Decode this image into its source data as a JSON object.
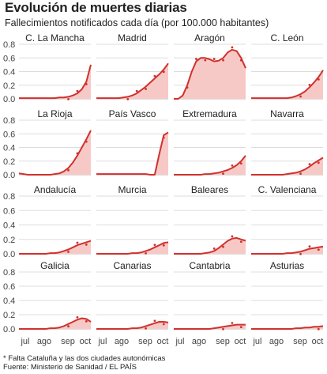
{
  "title": "Evolución de muertes diarias",
  "subtitle": "Fallecimientos notificados cada día (por 100.000 habitantes)",
  "footnote": "* Falta Cataluña y las dos ciudades autonómicas",
  "source": "Fuente: Ministerio de Sanidad / EL PAÍS",
  "colors": {
    "line": "#d0312d",
    "fill": "#f7c9c6",
    "grid": "#dddddd",
    "axis": "#444444"
  },
  "chart_data": {
    "type": "area",
    "layout": "small-multiples 4x4",
    "x_labels": [
      "jul",
      "ago",
      "sep",
      "oct"
    ],
    "ylim": [
      0,
      0.8
    ],
    "y_ticks": [
      "0.0",
      "0.2",
      "0.4",
      "0.6",
      "0.8"
    ],
    "grid": true,
    "panels": [
      {
        "name": "C. La Mancha",
        "values": [
          0.01,
          0.01,
          0.01,
          0.01,
          0.01,
          0.01,
          0.01,
          0.01,
          0.01,
          0.02,
          0.02,
          0.03,
          0.05,
          0.08,
          0.14,
          0.25,
          0.5
        ]
      },
      {
        "name": "Madrid",
        "values": [
          0.01,
          0.01,
          0.01,
          0.01,
          0.01,
          0.01,
          0.02,
          0.03,
          0.05,
          0.08,
          0.13,
          0.18,
          0.24,
          0.3,
          0.36,
          0.43,
          0.52
        ]
      },
      {
        "name": "Aragón",
        "values": [
          0.0,
          0.0,
          0.05,
          0.2,
          0.4,
          0.55,
          0.6,
          0.6,
          0.58,
          0.55,
          0.56,
          0.6,
          0.68,
          0.72,
          0.7,
          0.6,
          0.45
        ]
      },
      {
        "name": "C. León",
        "values": [
          0.01,
          0.01,
          0.01,
          0.01,
          0.01,
          0.01,
          0.01,
          0.01,
          0.01,
          0.02,
          0.04,
          0.07,
          0.11,
          0.17,
          0.24,
          0.32,
          0.42
        ]
      },
      {
        "name": "La Rioja",
        "values": [
          0.02,
          0.01,
          0.0,
          0.0,
          0.0,
          0.0,
          0.0,
          0.0,
          0.01,
          0.02,
          0.05,
          0.1,
          0.18,
          0.28,
          0.4,
          0.52,
          0.65
        ]
      },
      {
        "name": "País Vasco",
        "values": [
          0.01,
          0.01,
          0.01,
          0.01,
          0.01,
          0.01,
          0.01,
          0.01,
          0.01,
          0.01,
          0.01,
          0.01,
          0.0,
          0.0,
          0.3,
          0.58,
          0.62
        ]
      },
      {
        "name": "Extremadura",
        "values": [
          0.0,
          0.0,
          0.0,
          0.0,
          0.0,
          0.0,
          0.0,
          0.01,
          0.01,
          0.02,
          0.03,
          0.05,
          0.07,
          0.1,
          0.14,
          0.2,
          0.28
        ]
      },
      {
        "name": "Navarra",
        "values": [
          0.0,
          0.0,
          0.0,
          0.0,
          0.0,
          0.0,
          0.0,
          0.0,
          0.01,
          0.02,
          0.03,
          0.05,
          0.08,
          0.12,
          0.17,
          0.21,
          0.25
        ]
      },
      {
        "name": "Andalucía",
        "values": [
          0.0,
          0.0,
          0.0,
          0.0,
          0.0,
          0.0,
          0.0,
          0.01,
          0.01,
          0.02,
          0.04,
          0.06,
          0.09,
          0.12,
          0.14,
          0.16,
          0.18
        ]
      },
      {
        "name": "Murcia",
        "values": [
          0.0,
          0.0,
          0.0,
          0.0,
          0.0,
          0.0,
          0.0,
          0.0,
          0.01,
          0.01,
          0.02,
          0.04,
          0.06,
          0.09,
          0.12,
          0.15,
          0.16
        ]
      },
      {
        "name": "Baleares",
        "values": [
          0.0,
          0.0,
          0.0,
          0.0,
          0.0,
          0.0,
          0.0,
          0.01,
          0.02,
          0.04,
          0.08,
          0.13,
          0.18,
          0.21,
          0.22,
          0.2,
          0.18
        ]
      },
      {
        "name": "C. Valenciana",
        "values": [
          0.0,
          0.0,
          0.0,
          0.0,
          0.0,
          0.0,
          0.0,
          0.0,
          0.01,
          0.01,
          0.02,
          0.03,
          0.05,
          0.07,
          0.08,
          0.09,
          0.1
        ]
      },
      {
        "name": "Galicia",
        "values": [
          0.0,
          0.0,
          0.0,
          0.0,
          0.0,
          0.0,
          0.0,
          0.01,
          0.01,
          0.02,
          0.04,
          0.07,
          0.1,
          0.13,
          0.15,
          0.14,
          0.1
        ]
      },
      {
        "name": "Canarias",
        "values": [
          0.0,
          0.0,
          0.0,
          0.0,
          0.0,
          0.0,
          0.0,
          0.0,
          0.01,
          0.01,
          0.02,
          0.04,
          0.06,
          0.08,
          0.1,
          0.1,
          0.09
        ]
      },
      {
        "name": "Cantabria",
        "values": [
          0.0,
          0.0,
          0.0,
          0.0,
          0.0,
          0.0,
          0.0,
          0.0,
          0.0,
          0.01,
          0.02,
          0.03,
          0.04,
          0.05,
          0.06,
          0.06,
          0.06
        ]
      },
      {
        "name": "Asturias",
        "values": [
          0.0,
          0.0,
          0.0,
          0.0,
          0.0,
          0.0,
          0.0,
          0.0,
          0.0,
          0.0,
          0.01,
          0.01,
          0.02,
          0.02,
          0.03,
          0.03,
          0.04
        ]
      }
    ]
  }
}
